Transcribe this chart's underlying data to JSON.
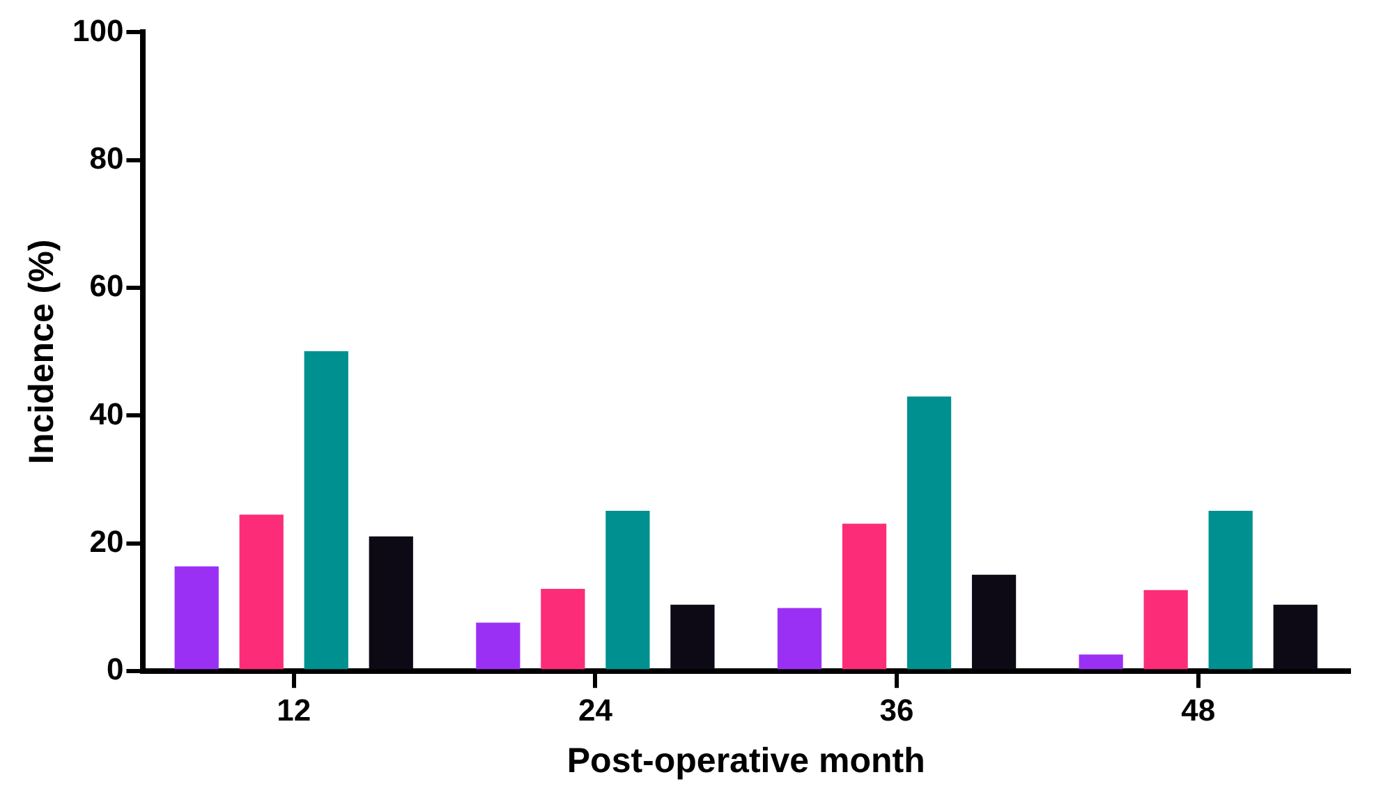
{
  "chart_data": {
    "type": "bar",
    "xlabel": "Post-operative month",
    "ylabel": "Incidence (%)",
    "categories": [
      "12",
      "24",
      "36",
      "48"
    ],
    "series": [
      {
        "color": "#9b30f5",
        "values": [
          16.4,
          7.6,
          9.9,
          2.6
        ]
      },
      {
        "color": "#fc2c78",
        "values": [
          24.5,
          12.9,
          23.1,
          12.7
        ]
      },
      {
        "color": "#009090",
        "values": [
          50.1,
          25.1,
          43.0,
          25.1
        ]
      },
      {
        "color": "#0d0a16",
        "values": [
          21.1,
          10.4,
          15.1,
          10.4
        ]
      }
    ],
    "ylim": [
      0,
      100
    ],
    "yticks": [
      0,
      20,
      40,
      60,
      80,
      100
    ],
    "grid": false,
    "legend": false
  }
}
